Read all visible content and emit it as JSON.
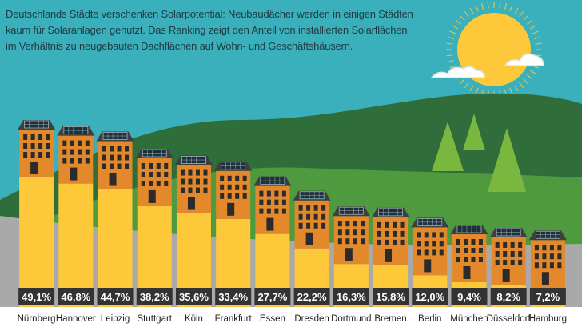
{
  "header": {
    "lines": [
      "Deutschlands Städte verschenken Solarpotential: Neubaudächer werden in einigen Städten",
      "kaum für Solaranlagen genutzt. Das Ranking zeigt den Anteil von installierten Solarflächen",
      "im Verhältnis zu neugebauten Dachflächen auf Wohn- und Geschäftshäusern."
    ]
  },
  "colors": {
    "sky": "#3ab0bd",
    "hill_dark": "#2f6d3b",
    "hill_mid": "#4f9a3f",
    "ground": "#a9a9a9",
    "bar": "#fdc93a",
    "building": "#e3892c",
    "roof": "#3f3f40",
    "label_box": "#333333",
    "sun": "#fdc93a",
    "tree": "#7ab73f"
  },
  "chart_data": {
    "type": "bar",
    "categories": [
      "Nürnberg",
      "Hannover",
      "Leipzig",
      "Stuttgart",
      "Köln",
      "Frankfurt",
      "Essen",
      "Dresden",
      "Dortmund",
      "Bremen",
      "Berlin",
      "München",
      "Düsseldorf",
      "Hamburg"
    ],
    "values": [
      49.1,
      46.8,
      44.7,
      38.2,
      35.6,
      33.4,
      27.7,
      22.2,
      16.3,
      15.8,
      12.0,
      9.4,
      8.2,
      7.2
    ],
    "value_labels": [
      "49,1%",
      "46,8%",
      "44,7%",
      "38,2%",
      "35,6%",
      "33,4%",
      "27,7%",
      "22,2%",
      "16,3%",
      "15,8%",
      "12,0%",
      "9,4%",
      "8,2%",
      "7,2%"
    ],
    "unit": "%",
    "ylim": [
      0,
      50
    ],
    "grid": false,
    "legend": "none"
  }
}
